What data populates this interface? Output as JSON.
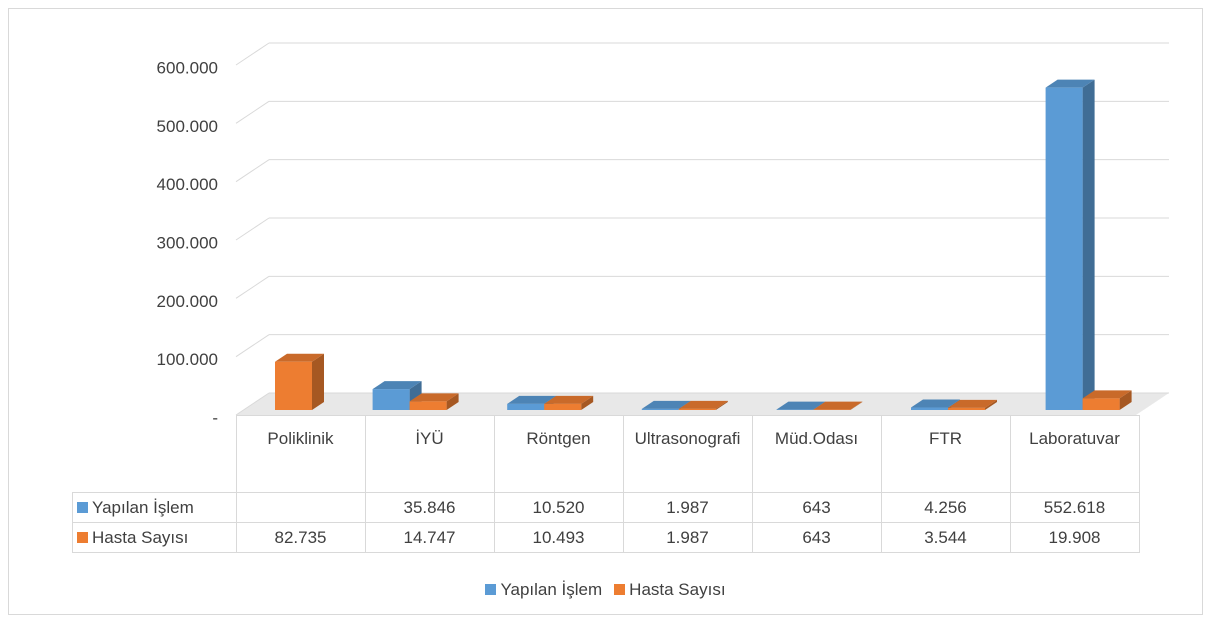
{
  "chart_data": {
    "type": "bar3d",
    "categories": [
      "Poliklinik",
      "İYÜ",
      "Röntgen",
      "Ultrasonografi",
      "Müd.Odası",
      "FTR",
      "Laboratuvar"
    ],
    "series": [
      {
        "name": "Yapılan İşlem",
        "color": "#5b9bd5",
        "values": [
          null,
          35846,
          10520,
          1987,
          643,
          4256,
          552618
        ],
        "value_labels": [
          null,
          "35.846",
          "10.520",
          "1.987",
          "643",
          "4.256",
          "552.618"
        ]
      },
      {
        "name": "Hasta Sayısı",
        "color": "#ed7d31",
        "values": [
          82735,
          14747,
          10493,
          1987,
          643,
          3544,
          19908
        ],
        "value_labels": [
          "82.735",
          "14.747",
          "10.493",
          "1.987",
          "643",
          "3.544",
          "19.908"
        ]
      }
    ],
    "ylim": [
      0,
      600000
    ],
    "yticks": [
      {
        "value": 0,
        "label": "-"
      },
      {
        "value": 100000,
        "label": "100.000"
      },
      {
        "value": 200000,
        "label": "200.000"
      },
      {
        "value": 300000,
        "label": "300.000"
      },
      {
        "value": 400000,
        "label": "400.000"
      },
      {
        "value": 500000,
        "label": "500.000"
      },
      {
        "value": 600000,
        "label": "600.000"
      }
    ],
    "grid": true,
    "legend": "bottom",
    "data_table": true
  }
}
